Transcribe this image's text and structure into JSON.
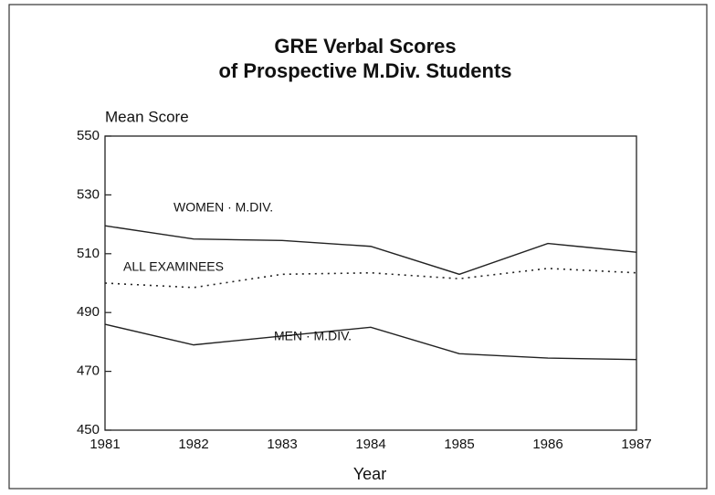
{
  "chart_data": {
    "type": "line",
    "title": [
      "GRE Verbal Scores",
      "of Prospective M.Div. Students"
    ],
    "y_label": "Mean Score",
    "x_label": "Year",
    "categories": [
      "1981",
      "1982",
      "1983",
      "1984",
      "1985",
      "1986",
      "1987"
    ],
    "series": [
      {
        "name": "WOMEN · M.DIV.",
        "color": "#222222",
        "style": "solid",
        "values": [
          519.5,
          515,
          514.5,
          512.5,
          503,
          513.5,
          510.5
        ]
      },
      {
        "name": "ALL EXAMINEES",
        "color": "#222222",
        "style": "dotted",
        "values": [
          500,
          498.5,
          503,
          503.5,
          501.5,
          505,
          503.5
        ]
      },
      {
        "name": "MEN · M.DIV.",
        "color": "#222222",
        "style": "solid",
        "values": [
          486,
          479,
          482,
          485,
          476,
          474.5,
          474
        ]
      }
    ],
    "ylim": [
      450,
      550
    ],
    "yticks": [
      450,
      470,
      490,
      510,
      530,
      550
    ],
    "grid": false
  }
}
